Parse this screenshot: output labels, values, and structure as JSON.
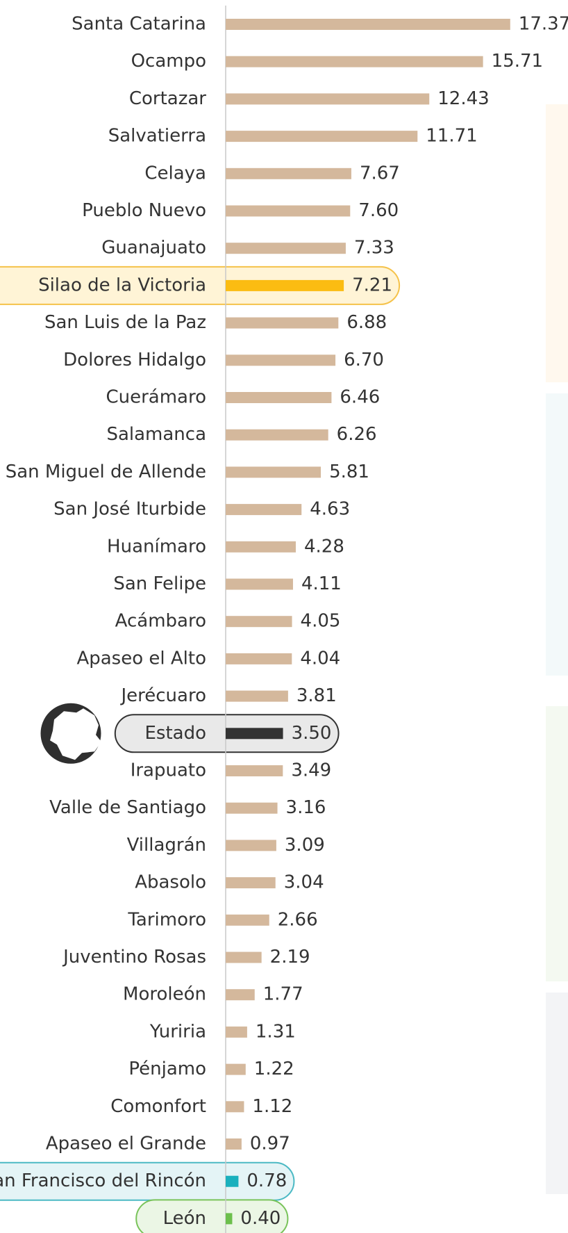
{
  "chart_data": {
    "type": "hbar",
    "categories": [
      "Santa Catarina",
      "Ocampo",
      "Cortazar",
      "Salvatierra",
      "Celaya",
      "Pueblo Nuevo",
      "Guanajuato",
      "Silao de la Victoria",
      "San Luis de la Paz",
      "Dolores Hidalgo ",
      "Cuerámaro",
      "Salamanca",
      "San Miguel de Allende",
      "San José Iturbide",
      "Huanímaro",
      "San Felipe",
      "Acámbaro",
      "Apaseo el Alto",
      "Jerécuaro",
      "Estado",
      "Irapuato",
      "Valle de Santiago",
      "Villagrán",
      "Abasolo",
      "Tarimoro",
      "Juventino Rosas",
      "Moroleón",
      "Yuriria",
      "Pénjamo",
      "Comonfort",
      "Apaseo el Grande",
      "San Francisco del Rincón",
      "León"
    ],
    "values": [
      17.37,
      15.71,
      12.43,
      11.71,
      7.67,
      7.6,
      7.33,
      7.21,
      6.88,
      6.7,
      6.46,
      6.26,
      5.81,
      4.63,
      4.28,
      4.11,
      4.05,
      4.04,
      3.81,
      3.5,
      3.49,
      3.16,
      3.09,
      3.04,
      2.66,
      2.19,
      1.77,
      1.31,
      1.22,
      1.12,
      0.97,
      0.78,
      0.4
    ],
    "value_labels": [
      "17.37",
      "15.71",
      "12.43",
      "11.71",
      "7.67",
      "7.60",
      "7.33",
      "7.21",
      "6.88",
      "6.70",
      "6.46",
      "6.26",
      "5.81",
      "4.63",
      "4.28",
      "4.11",
      "4.05",
      "4.04",
      "3.81",
      "3.50",
      "3.49",
      "3.16",
      "3.09",
      "3.04",
      "2.66",
      "2.19",
      "1.77",
      "1.31",
      "1.22",
      "1.12",
      "0.97",
      "0.78",
      "0.40"
    ],
    "colors": [
      "#d4b89c",
      "#d4b89c",
      "#d4b89c",
      "#d4b89c",
      "#d4b89c",
      "#d4b89c",
      "#d4b89c",
      "#fbbc12",
      "#d4b89c",
      "#d4b89c",
      "#d4b89c",
      "#d4b89c",
      "#d4b89c",
      "#d4b89c",
      "#d4b89c",
      "#d4b89c",
      "#d4b89c",
      "#d4b89c",
      "#d4b89c",
      "#333333",
      "#d4b89c",
      "#d4b89c",
      "#d4b89c",
      "#d4b89c",
      "#d4b89c",
      "#d4b89c",
      "#d4b89c",
      "#d4b89c",
      "#d4b89c",
      "#d4b89c",
      "#d4b89c",
      "#1ab0bd",
      "#6cbf4c"
    ],
    "xlim": [
      0,
      20.6
    ]
  }
}
